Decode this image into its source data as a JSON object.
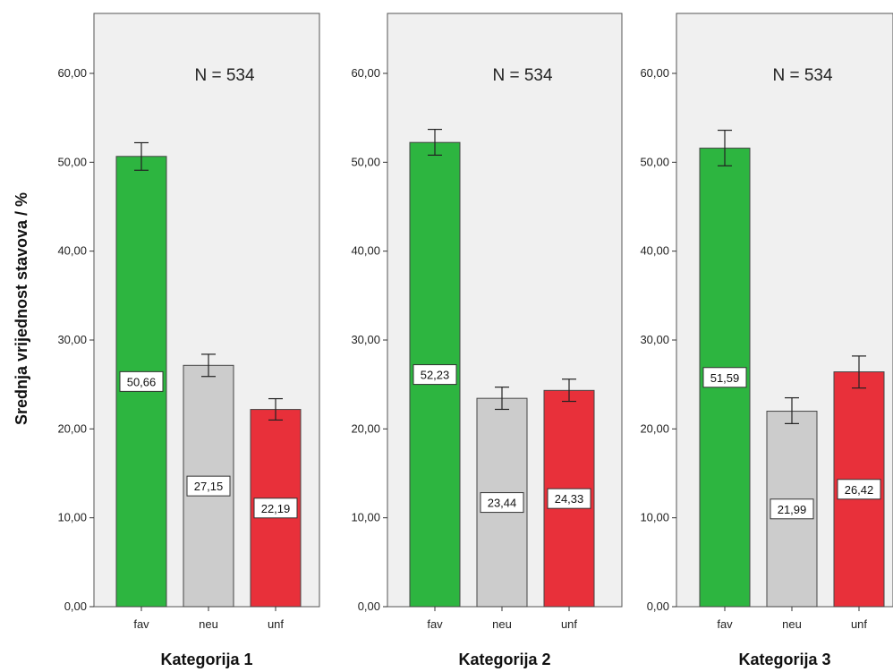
{
  "chart_data": {
    "type": "bar",
    "ylabel": "Srednja vrijednost stavova / %",
    "ylim": [
      0,
      65
    ],
    "yticks": [
      "0,00",
      "10,00",
      "20,00",
      "30,00",
      "40,00",
      "50,00",
      "60,00"
    ],
    "categories": [
      "fav",
      "neu",
      "unf"
    ],
    "colors": {
      "fav": "#2db540",
      "neu": "#cccccc",
      "unf": "#e8303a",
      "panel_bg": "#f0f0f0"
    },
    "error_bars": true,
    "grid": false,
    "panels": [
      {
        "title": "Kategorija 1",
        "n_label": "N = 534",
        "values": [
          50.66,
          27.15,
          22.19
        ],
        "value_labels": [
          "50,66",
          "27,15",
          "22,19"
        ],
        "error": [
          [
            49.1,
            52.2
          ],
          [
            25.9,
            28.4
          ],
          [
            21.0,
            23.4
          ]
        ]
      },
      {
        "title": "Kategorija 2",
        "n_label": "N = 534",
        "values": [
          52.23,
          23.44,
          24.33
        ],
        "value_labels": [
          "52,23",
          "23,44",
          "24,33"
        ],
        "error": [
          [
            50.8,
            53.7
          ],
          [
            22.2,
            24.7
          ],
          [
            23.1,
            25.6
          ]
        ]
      },
      {
        "title": "Kategorija 3",
        "n_label": "N = 534",
        "values": [
          51.59,
          21.99,
          26.42
        ],
        "value_labels": [
          "51,59",
          "21,99",
          "26,42"
        ],
        "error": [
          [
            49.6,
            53.6
          ],
          [
            20.6,
            23.5
          ],
          [
            24.6,
            28.2
          ]
        ]
      }
    ]
  }
}
